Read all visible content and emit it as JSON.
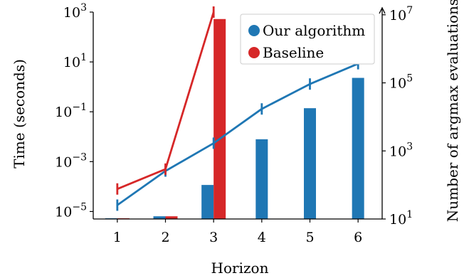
{
  "chart_data": {
    "type": "bar",
    "categories": [
      "1",
      "2",
      "3",
      "4",
      "5",
      "6"
    ],
    "x": [
      1,
      2,
      3,
      4,
      5,
      6
    ],
    "xlabel": "Horizon",
    "ylabel_left": "Time (seconds)",
    "ylabel_right": "Number of argmax evaluations",
    "left_axis": {
      "scale": "log",
      "ylim": [
        5e-06,
        1000
      ],
      "ticks": [
        1e-05,
        0.001,
        0.1,
        10,
        1000
      ],
      "tick_labels": [
        [
          "10",
          "−5"
        ],
        [
          "10",
          "−3"
        ],
        [
          "10",
          "−1"
        ],
        [
          "10",
          "1"
        ],
        [
          "10",
          "3"
        ]
      ]
    },
    "right_axis": {
      "scale": "log",
      "ylim": [
        10,
        12000000
      ],
      "ticks": [
        10,
        1000,
        100000,
        10000000
      ],
      "tick_labels": [
        [
          "10",
          "1"
        ],
        [
          "10",
          "3"
        ],
        [
          "10",
          "5"
        ],
        [
          "10",
          "7"
        ]
      ]
    },
    "legend": {
      "placement": "top-right",
      "entries": [
        {
          "name": "Our algorithm",
          "color": "#1f77b4"
        },
        {
          "name": "Baseline",
          "color": "#d62728"
        }
      ]
    },
    "series": [
      {
        "name": "Our algorithm",
        "color": "#1f77b4",
        "time_line": [
          1.8e-05,
          0.00042,
          0.0055,
          0.13,
          1.3,
          8.5
        ],
        "evaluations_bars": [
          10.5,
          12,
          100,
          2200,
          18000,
          140000
        ]
      },
      {
        "name": "Baseline",
        "color": "#d62728",
        "time_line": [
          8e-05,
          0.0005,
          1000
        ],
        "evaluations_bars": [
          10.5,
          12,
          7500000
        ]
      }
    ],
    "grid": false
  }
}
